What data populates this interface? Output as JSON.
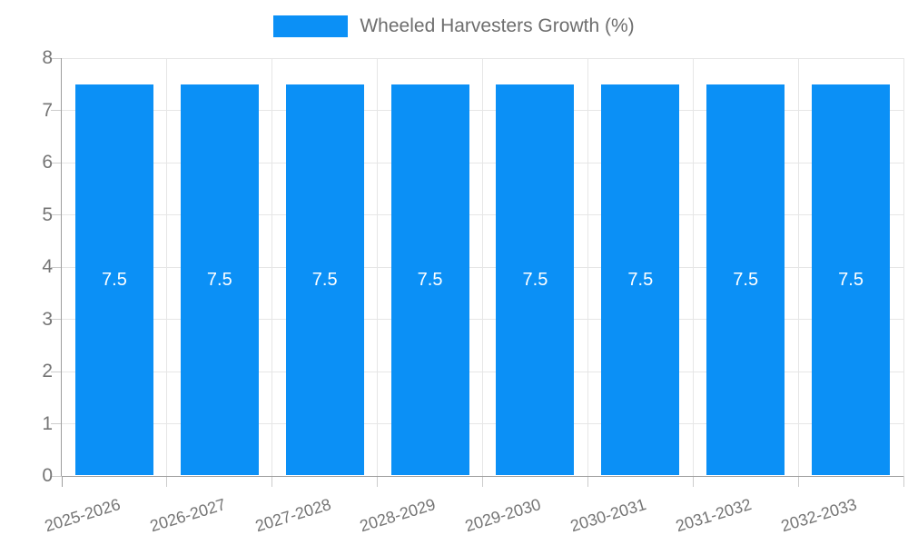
{
  "chart_data": {
    "type": "bar",
    "title": "Wheeled Harvesters Growth (%)",
    "legend_position": "top",
    "categories": [
      "2025-2026",
      "2026-2027",
      "2027-2028",
      "2028-2029",
      "2029-2030",
      "2030-2031",
      "2031-2032",
      "2032-2033"
    ],
    "series": [
      {
        "name": "Wheeled Harvesters Growth (%)",
        "values": [
          7.5,
          7.5,
          7.5,
          7.5,
          7.5,
          7.5,
          7.5,
          7.5
        ]
      }
    ],
    "bar_labels": [
      "7.5",
      "7.5",
      "7.5",
      "7.5",
      "7.5",
      "7.5",
      "7.5",
      "7.5"
    ],
    "xlabel": "",
    "ylabel": "",
    "ylim": [
      0,
      8
    ],
    "yticks": [
      0,
      1,
      2,
      3,
      4,
      5,
      6,
      7,
      8
    ],
    "grid": true,
    "colors": {
      "bar": "#0b90f6",
      "bar_label_text": "#ffffff",
      "axis_text": "#757575",
      "legend_text": "#6e6e6e",
      "gridline": "#e6e6e6",
      "tick": "#cccccc",
      "axis_line": "#9e9e9e"
    }
  }
}
